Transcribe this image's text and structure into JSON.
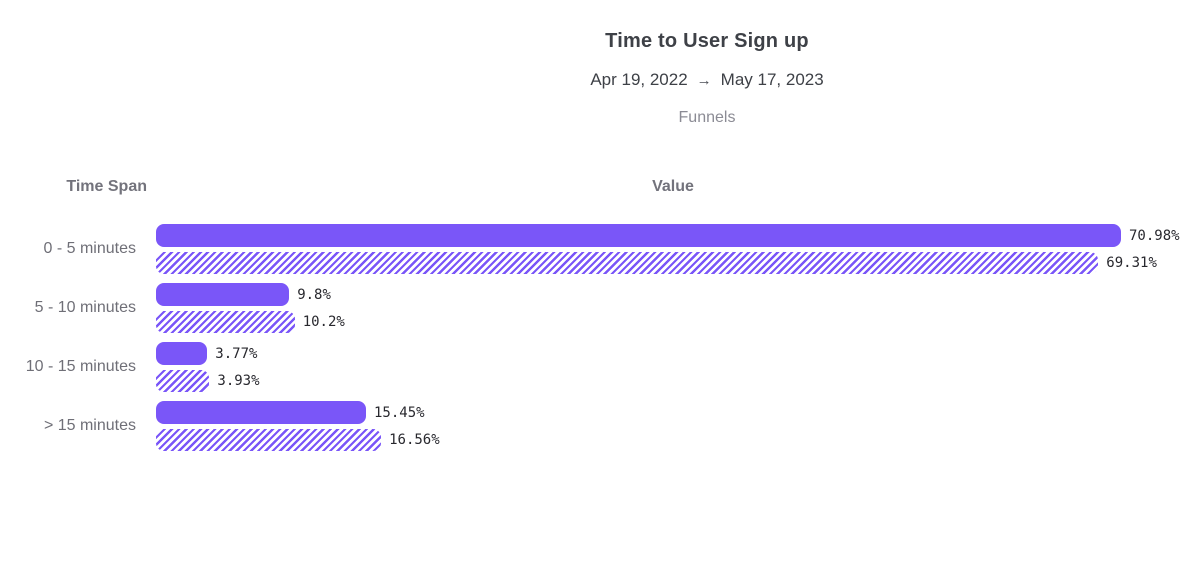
{
  "header": {
    "title": "Time to User Sign up",
    "date_start": "Apr 19, 2022",
    "date_arrow": "→",
    "date_end": "May 17, 2023",
    "subtitle": "Funnels"
  },
  "table": {
    "label_header": "Time Span",
    "value_header": "Value"
  },
  "chart_data": {
    "type": "bar",
    "orientation": "horizontal",
    "title": "Time to User Sign up",
    "subtitle": "Apr 19, 2022 → May 17, 2023",
    "chart_kind_label": "Funnels",
    "xlabel": "Value",
    "ylabel": "Time Span",
    "categories": [
      "0 - 5 minutes",
      "5 - 10 minutes",
      "10 - 15 minutes",
      "> 15 minutes"
    ],
    "series": [
      {
        "name": "solid",
        "style": "solid",
        "values": [
          70.98,
          9.8,
          3.77,
          15.45
        ],
        "labels": [
          "70.98%",
          "9.8%",
          "3.77%",
          "15.45%"
        ]
      },
      {
        "name": "hatched",
        "style": "hatched",
        "values": [
          69.31,
          10.2,
          3.93,
          16.56
        ],
        "labels": [
          "69.31%",
          "10.2%",
          "3.93%",
          "16.56%"
        ]
      }
    ],
    "value_unit": "%",
    "xlim": [
      0,
      73
    ],
    "grid": false,
    "legend": "none",
    "bar_color": "#7A56F8"
  }
}
